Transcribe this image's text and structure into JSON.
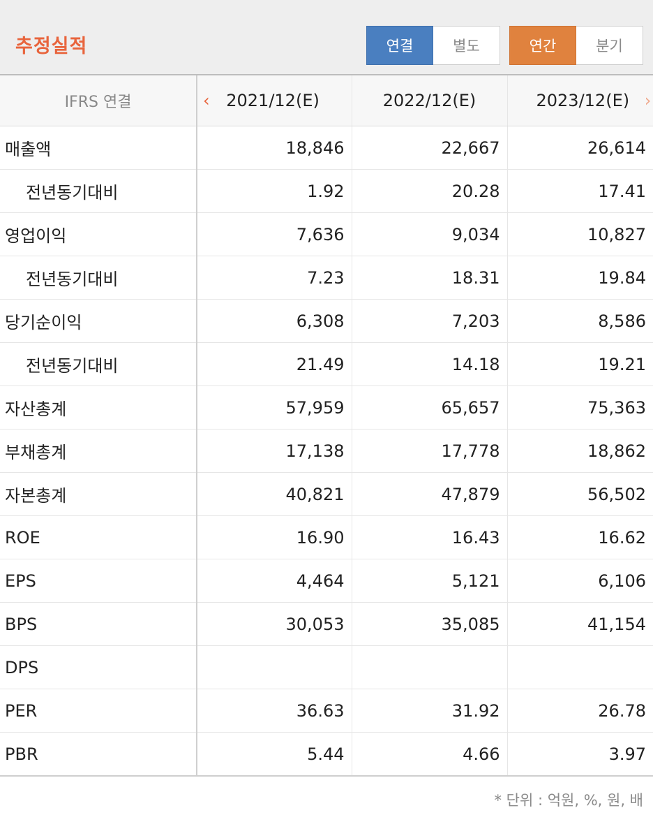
{
  "header": {
    "title": "추정실적",
    "toggle1": {
      "a": "연결",
      "b": "별도",
      "active": "a"
    },
    "toggle2": {
      "a": "연간",
      "b": "분기",
      "active": "a"
    }
  },
  "table": {
    "label_header": "IFRS 연결",
    "prev_icon": "‹",
    "next_icon": "›",
    "columns": [
      "2021/12(E)",
      "2022/12(E)",
      "2023/12(E)"
    ],
    "rows": [
      {
        "label": "매출액",
        "sub": false,
        "values": [
          "18,846",
          "22,667",
          "26,614"
        ]
      },
      {
        "label": "전년동기대비",
        "sub": true,
        "values": [
          "1.92",
          "20.28",
          "17.41"
        ]
      },
      {
        "label": "영업이익",
        "sub": false,
        "values": [
          "7,636",
          "9,034",
          "10,827"
        ]
      },
      {
        "label": "전년동기대비",
        "sub": true,
        "values": [
          "7.23",
          "18.31",
          "19.84"
        ]
      },
      {
        "label": "당기순이익",
        "sub": false,
        "values": [
          "6,308",
          "7,203",
          "8,586"
        ]
      },
      {
        "label": "전년동기대비",
        "sub": true,
        "values": [
          "21.49",
          "14.18",
          "19.21"
        ]
      },
      {
        "label": "자산총계",
        "sub": false,
        "values": [
          "57,959",
          "65,657",
          "75,363"
        ]
      },
      {
        "label": "부채총계",
        "sub": false,
        "values": [
          "17,138",
          "17,778",
          "18,862"
        ]
      },
      {
        "label": "자본총계",
        "sub": false,
        "values": [
          "40,821",
          "47,879",
          "56,502"
        ]
      },
      {
        "label": "ROE",
        "sub": false,
        "values": [
          "16.90",
          "16.43",
          "16.62"
        ]
      },
      {
        "label": "EPS",
        "sub": false,
        "values": [
          "4,464",
          "5,121",
          "6,106"
        ]
      },
      {
        "label": "BPS",
        "sub": false,
        "values": [
          "30,053",
          "35,085",
          "41,154"
        ]
      },
      {
        "label": "DPS",
        "sub": false,
        "values": [
          "",
          "",
          ""
        ]
      },
      {
        "label": "PER",
        "sub": false,
        "values": [
          "36.63",
          "31.92",
          "26.78"
        ]
      },
      {
        "label": "PBR",
        "sub": false,
        "values": [
          "5.44",
          "4.66",
          "3.97"
        ]
      }
    ]
  },
  "footnote": "* 단위 : 억원, %, 원, 배",
  "colors": {
    "accent": "#e8643c",
    "blue": "#4a7fc0",
    "orange": "#e0823e"
  }
}
